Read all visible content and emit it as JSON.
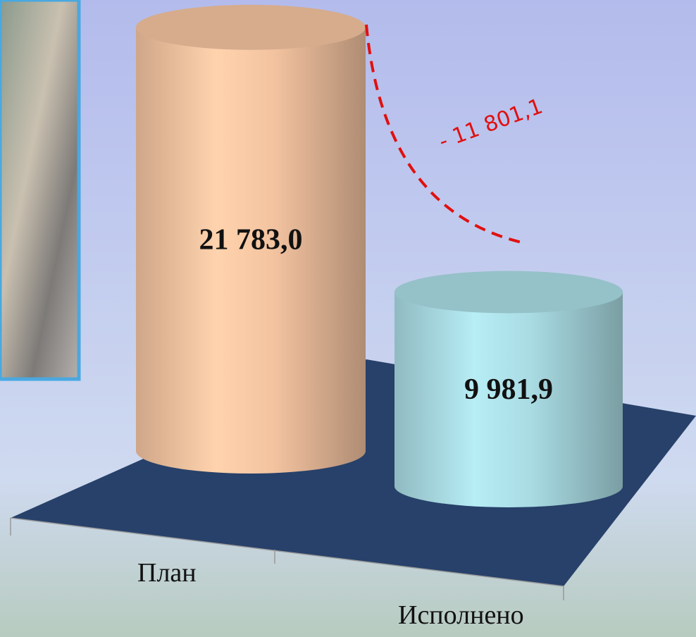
{
  "chart_data": {
    "type": "bar3d",
    "categories": [
      "План",
      "Исполнено"
    ],
    "values": [
      21783.0,
      9981.9
    ],
    "value_labels": [
      "21 783,0",
      "9 981,9"
    ],
    "colors": [
      "#f3c3a0",
      "#a9dbe3"
    ],
    "annotation": "- 11 801,1"
  }
}
